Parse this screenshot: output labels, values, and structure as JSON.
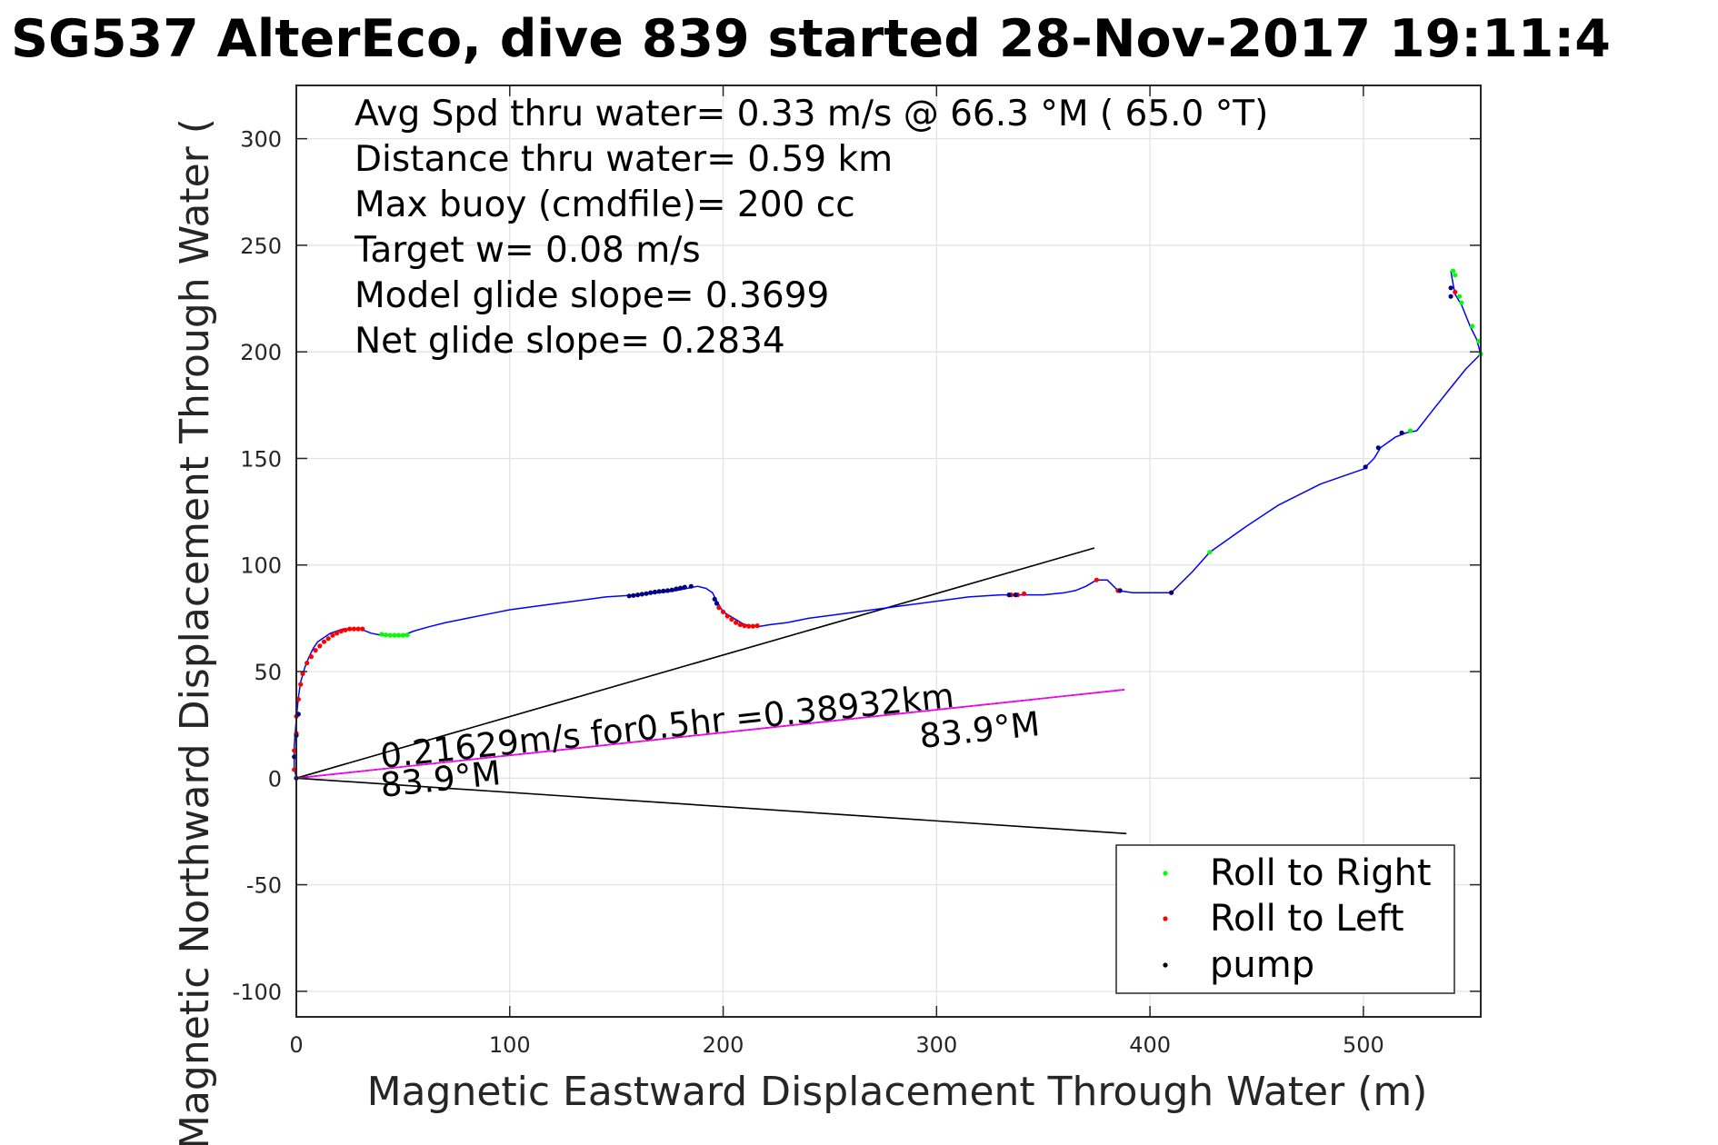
{
  "chart_data": {
    "type": "line",
    "title": "SG537 AlterEco, dive 839 started 28-Nov-2017 19:11:4",
    "xlabel": "Magnetic Eastward Displacement Through Water (m)",
    "ylabel": "Magnetic Northward Displacement Through Water (",
    "xlim": [
      0,
      555
    ],
    "ylim": [
      -112,
      325
    ],
    "xticks": [
      0,
      100,
      200,
      300,
      400,
      500
    ],
    "xtick_labels": [
      "0",
      "100",
      "200",
      "300",
      "400",
      "500"
    ],
    "yticks": [
      -100,
      -50,
      0,
      50,
      100,
      150,
      200,
      250,
      300
    ],
    "ytick_labels": [
      "-100",
      "-50",
      "0",
      "50",
      "100",
      "150",
      "200",
      "250",
      "300"
    ],
    "grid": true,
    "legend_position": "bottom-right",
    "info_lines": [
      "Avg Spd thru water=  0.33 m/s @  66.3 °M ( 65.0 °T)",
      "Distance thru water=  0.59 km",
      "Max buoy (cmdfile)= 200 cc",
      "Target w= 0.08 m/s",
      "Model glide slope= 0.3699",
      "Net glide slope= 0.2834"
    ],
    "annotations": {
      "current_text": "0.21629m/s for0.5hr =0.38932km",
      "heading_left": "83.9°M",
      "heading_right": "83.9°M"
    },
    "track": {
      "color": "#0000ff",
      "x": [
        0,
        -1,
        -1,
        0,
        1,
        2,
        4,
        6,
        8,
        10,
        13,
        16,
        19,
        22,
        26,
        30,
        35,
        40,
        45,
        50,
        55,
        62,
        70,
        80,
        90,
        100,
        115,
        130,
        145,
        160,
        170,
        178,
        183,
        188,
        192,
        195,
        197,
        200,
        205,
        210,
        216,
        222,
        230,
        240,
        255,
        270,
        285,
        300,
        315,
        330,
        340,
        350,
        360,
        365,
        370,
        375,
        380,
        385,
        392,
        400,
        410,
        420,
        428,
        445,
        460,
        480,
        500,
        505,
        508,
        515,
        520,
        525,
        532,
        540,
        548,
        555,
        553,
        550,
        546,
        543,
        542,
        541
      ],
      "y": [
        0,
        5,
        15,
        28,
        38,
        45,
        52,
        57,
        61,
        64,
        66,
        68,
        69,
        70,
        70,
        70,
        68,
        67,
        67,
        67,
        69,
        71,
        73,
        75,
        77,
        79,
        81,
        83,
        85,
        86,
        87,
        88,
        89,
        90,
        89,
        87,
        83,
        78,
        75,
        72,
        71,
        72,
        73,
        75,
        77,
        79,
        81,
        83,
        85,
        86,
        86,
        86,
        87,
        88,
        90,
        93,
        93,
        88,
        87,
        87,
        87,
        97,
        106,
        118,
        128,
        138,
        145,
        150,
        155,
        160,
        162,
        163,
        172,
        182,
        192,
        199,
        206,
        212,
        222,
        227,
        232,
        238
      ]
    },
    "current_line": {
      "color": "#ff00ff",
      "x": [
        0,
        388
      ],
      "y": [
        0,
        41.5
      ]
    },
    "reference_lines": [
      {
        "color": "#000000",
        "x": [
          0,
          374
        ],
        "y": [
          0,
          108
        ]
      },
      {
        "color": "#000000",
        "x": [
          0,
          388
        ],
        "y": [
          0,
          41.5
        ]
      },
      {
        "color": "#000000",
        "x": [
          0,
          389
        ],
        "y": [
          0,
          -26
        ]
      }
    ],
    "series": [
      {
        "name": "Roll to Right",
        "color": "#00ff00",
        "x": [
          40,
          42,
          44,
          46,
          48,
          50,
          52,
          428,
          522,
          542,
          543,
          545,
          546,
          551,
          555,
          554
        ],
        "y": [
          67.5,
          67.2,
          67,
          67,
          67,
          67,
          67.2,
          106,
          163,
          238,
          236,
          226,
          223,
          212,
          199,
          205
        ]
      },
      {
        "name": "Roll to Left",
        "color": "#ff0000",
        "x": [
          -1,
          -1,
          0,
          0,
          1,
          2,
          3,
          5,
          7,
          9,
          11,
          13,
          15,
          17,
          19,
          21,
          23,
          25,
          27,
          29,
          31,
          198,
          200,
          202,
          204,
          206,
          208,
          210,
          212,
          214,
          216,
          335,
          338,
          341,
          375,
          385,
          410,
          543
        ],
        "y": [
          4,
          13,
          21,
          29,
          37,
          44,
          49,
          54,
          57,
          60,
          62,
          64,
          65.5,
          67,
          68,
          69,
          69.5,
          70,
          70,
          70,
          70,
          80,
          78,
          76,
          74.5,
          73,
          72,
          71.5,
          71.3,
          71.3,
          71.5,
          86,
          86,
          86.5,
          93,
          88,
          87,
          228
        ]
      },
      {
        "name": "pump",
        "color": "#000080",
        "x": [
          0,
          -1,
          0,
          1,
          156,
          158,
          160,
          162,
          164,
          166,
          168,
          170,
          172,
          174,
          176,
          178,
          180,
          182,
          185,
          196,
          197,
          334,
          337,
          386,
          410,
          501,
          507,
          518,
          541,
          541
        ],
        "y": [
          0,
          10,
          20,
          30,
          85.5,
          85.7,
          86,
          86.3,
          86.6,
          87,
          87.3,
          87.6,
          87.8,
          88,
          88.3,
          88.8,
          89.2,
          89.6,
          90,
          84,
          82,
          86,
          86,
          88,
          87,
          146,
          155,
          162,
          226,
          230
        ]
      }
    ]
  }
}
